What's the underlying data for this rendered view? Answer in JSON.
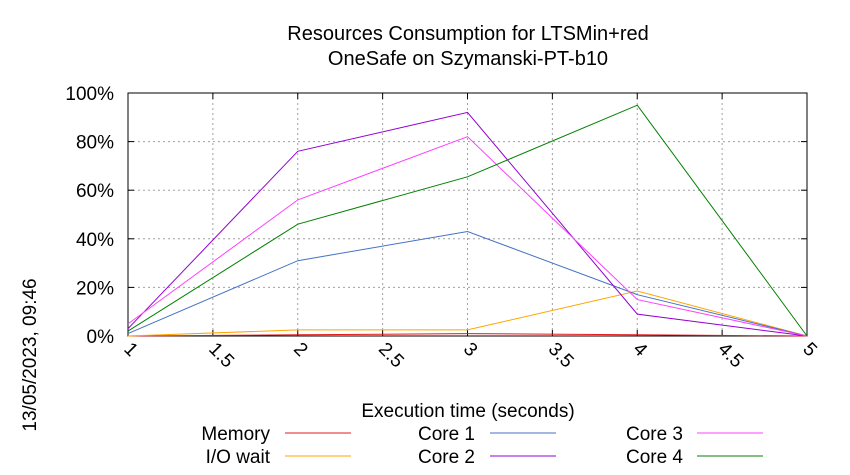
{
  "chart_data": {
    "type": "line",
    "title": [
      "Resources Consumption for LTSMin+red",
      "OneSafe on Szymanski-PT-b10"
    ],
    "xlabel": "Execution time (seconds)",
    "ylabel": "",
    "timestamp": "13/05/2023, 09:46",
    "xlim": [
      1,
      5
    ],
    "ylim": [
      0,
      100
    ],
    "x_ticks": [
      1,
      1.5,
      2,
      2.5,
      3,
      3.5,
      4,
      4.5,
      5
    ],
    "x_tick_labels": [
      "1",
      "1.5",
      "2",
      "2.5",
      "3",
      "3.5",
      "4",
      "4.5",
      "5"
    ],
    "y_ticks": [
      0,
      20,
      40,
      60,
      80,
      100
    ],
    "y_tick_labels": [
      "0%",
      "20%",
      "40%",
      "60%",
      "80%",
      "100%"
    ],
    "grid": true,
    "legend_position": "bottom",
    "x": [
      1,
      2,
      3,
      4,
      5
    ],
    "series": [
      {
        "name": "Memory",
        "color": "#e41a1c",
        "values": [
          0,
          0.5,
          1,
          0.5,
          0
        ]
      },
      {
        "name": "I/O wait",
        "color": "#ffa500",
        "values": [
          0,
          2.5,
          2.5,
          18.5,
          0
        ]
      },
      {
        "name": "Core 1",
        "color": "#4472c4",
        "values": [
          1,
          31,
          43,
          17,
          0
        ]
      },
      {
        "name": "Core 2",
        "color": "#9400d3",
        "values": [
          3,
          76,
          92,
          9,
          0
        ]
      },
      {
        "name": "Core 3",
        "color": "#ff40ff",
        "values": [
          5,
          56,
          82,
          15,
          0
        ]
      },
      {
        "name": "Core 4",
        "color": "#008000",
        "values": [
          2,
          46,
          65.5,
          95,
          0
        ]
      }
    ]
  }
}
